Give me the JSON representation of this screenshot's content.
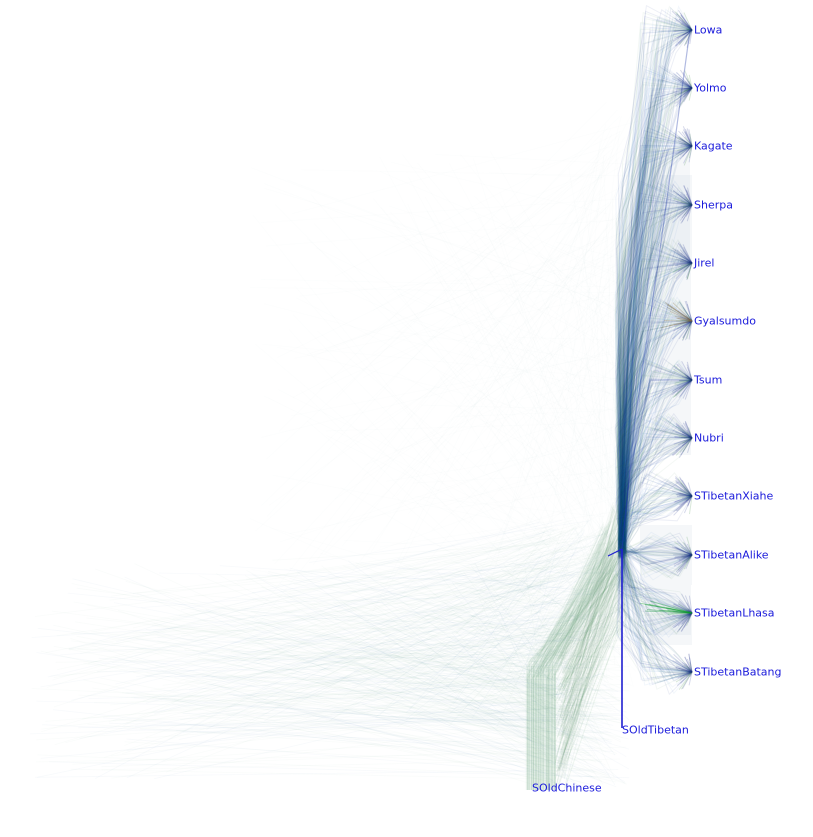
{
  "tree": {
    "type": "densitree",
    "label_color": "#1a1adb",
    "branch_colors": [
      "#1b2f8a",
      "#2e7d32",
      "#1565c0",
      "#8d6e3c"
    ],
    "taxa": [
      "Lowa",
      "Yolmo",
      "Kagate",
      "Sherpa",
      "Jirel",
      "Gyalsumdo",
      "Tsum",
      "Nubri",
      "STibetanXiahe",
      "STibetanAlike",
      "STibetanLhasa",
      "STibetanBatang",
      "SOldTibetan",
      "SOldChinese"
    ]
  }
}
